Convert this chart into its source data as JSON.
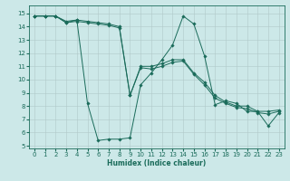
{
  "xlabel": "Humidex (Indice chaleur)",
  "bg_color": "#cce8e8",
  "grid_color": "#b0c8c8",
  "line_color": "#1a6b5a",
  "xlim": [
    -0.5,
    23.5
  ],
  "ylim": [
    4.8,
    15.6
  ],
  "yticks": [
    5,
    6,
    7,
    8,
    9,
    10,
    11,
    12,
    13,
    14,
    15
  ],
  "xticks": [
    0,
    1,
    2,
    3,
    4,
    5,
    6,
    7,
    8,
    9,
    10,
    11,
    12,
    13,
    14,
    15,
    16,
    17,
    18,
    19,
    20,
    21,
    22,
    23
  ],
  "series": [
    {
      "x": [
        0,
        1,
        2,
        3,
        4,
        5,
        6,
        7,
        8,
        9,
        10,
        11,
        12,
        13,
        14,
        15,
        16,
        17,
        18,
        19,
        20,
        21,
        22,
        23
      ],
      "y": [
        14.8,
        14.8,
        14.8,
        14.4,
        14.5,
        8.2,
        5.4,
        5.5,
        5.5,
        5.6,
        9.6,
        10.5,
        11.5,
        12.6,
        14.8,
        14.2,
        11.8,
        8.1,
        8.4,
        8.2,
        7.6,
        7.6,
        6.5,
        7.5
      ]
    },
    {
      "x": [
        0,
        1,
        2,
        3,
        4,
        5,
        6,
        7,
        8,
        9,
        10,
        11,
        12,
        13,
        14,
        15,
        16,
        17,
        18,
        19,
        20,
        21,
        22,
        23
      ],
      "y": [
        14.8,
        14.8,
        14.8,
        14.3,
        14.5,
        14.4,
        14.3,
        14.2,
        14.0,
        8.8,
        11.0,
        11.0,
        11.2,
        11.5,
        11.5,
        10.5,
        9.8,
        8.8,
        8.3,
        8.0,
        8.0,
        7.6,
        7.6,
        7.7
      ]
    },
    {
      "x": [
        0,
        1,
        2,
        3,
        4,
        5,
        6,
        7,
        8,
        9,
        10,
        11,
        12,
        13,
        14,
        15,
        16,
        17,
        18,
        19,
        20,
        21,
        22,
        23
      ],
      "y": [
        14.8,
        14.8,
        14.8,
        14.3,
        14.4,
        14.3,
        14.2,
        14.1,
        13.9,
        8.8,
        10.9,
        10.8,
        11.0,
        11.3,
        11.4,
        10.4,
        9.6,
        8.6,
        8.2,
        7.9,
        7.8,
        7.5,
        7.4,
        7.6
      ]
    }
  ],
  "tick_fontsize": 5,
  "xlabel_fontsize": 5.5,
  "marker_size": 1.8,
  "line_width": 0.7
}
